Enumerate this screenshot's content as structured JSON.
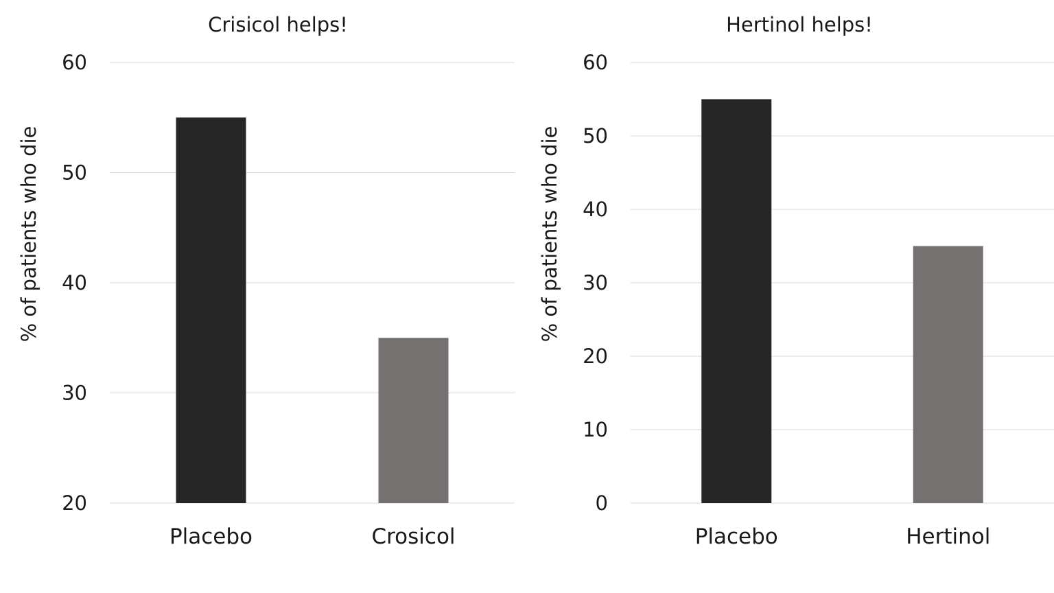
{
  "chart_data": [
    {
      "type": "bar",
      "title": "Crisicol helps!",
      "xlabel": "",
      "ylabel": "% of patients who die",
      "categories": [
        "Placebo",
        "Crosicol"
      ],
      "values": [
        55,
        35
      ],
      "bar_colors": [
        "#262626",
        "#757170"
      ],
      "ylim": [
        20,
        60
      ],
      "yticks": [
        20,
        30,
        40,
        50,
        60
      ],
      "grid": true,
      "legend": "none"
    },
    {
      "type": "bar",
      "title": "Hertinol helps!",
      "xlabel": "",
      "ylabel": "% of patients who die",
      "categories": [
        "Placebo",
        "Hertinol"
      ],
      "values": [
        55,
        35
      ],
      "bar_colors": [
        "#262626",
        "#757170"
      ],
      "ylim": [
        0,
        60
      ],
      "yticks": [
        0,
        10,
        20,
        30,
        40,
        50,
        60
      ],
      "grid": true,
      "legend": "none"
    }
  ]
}
